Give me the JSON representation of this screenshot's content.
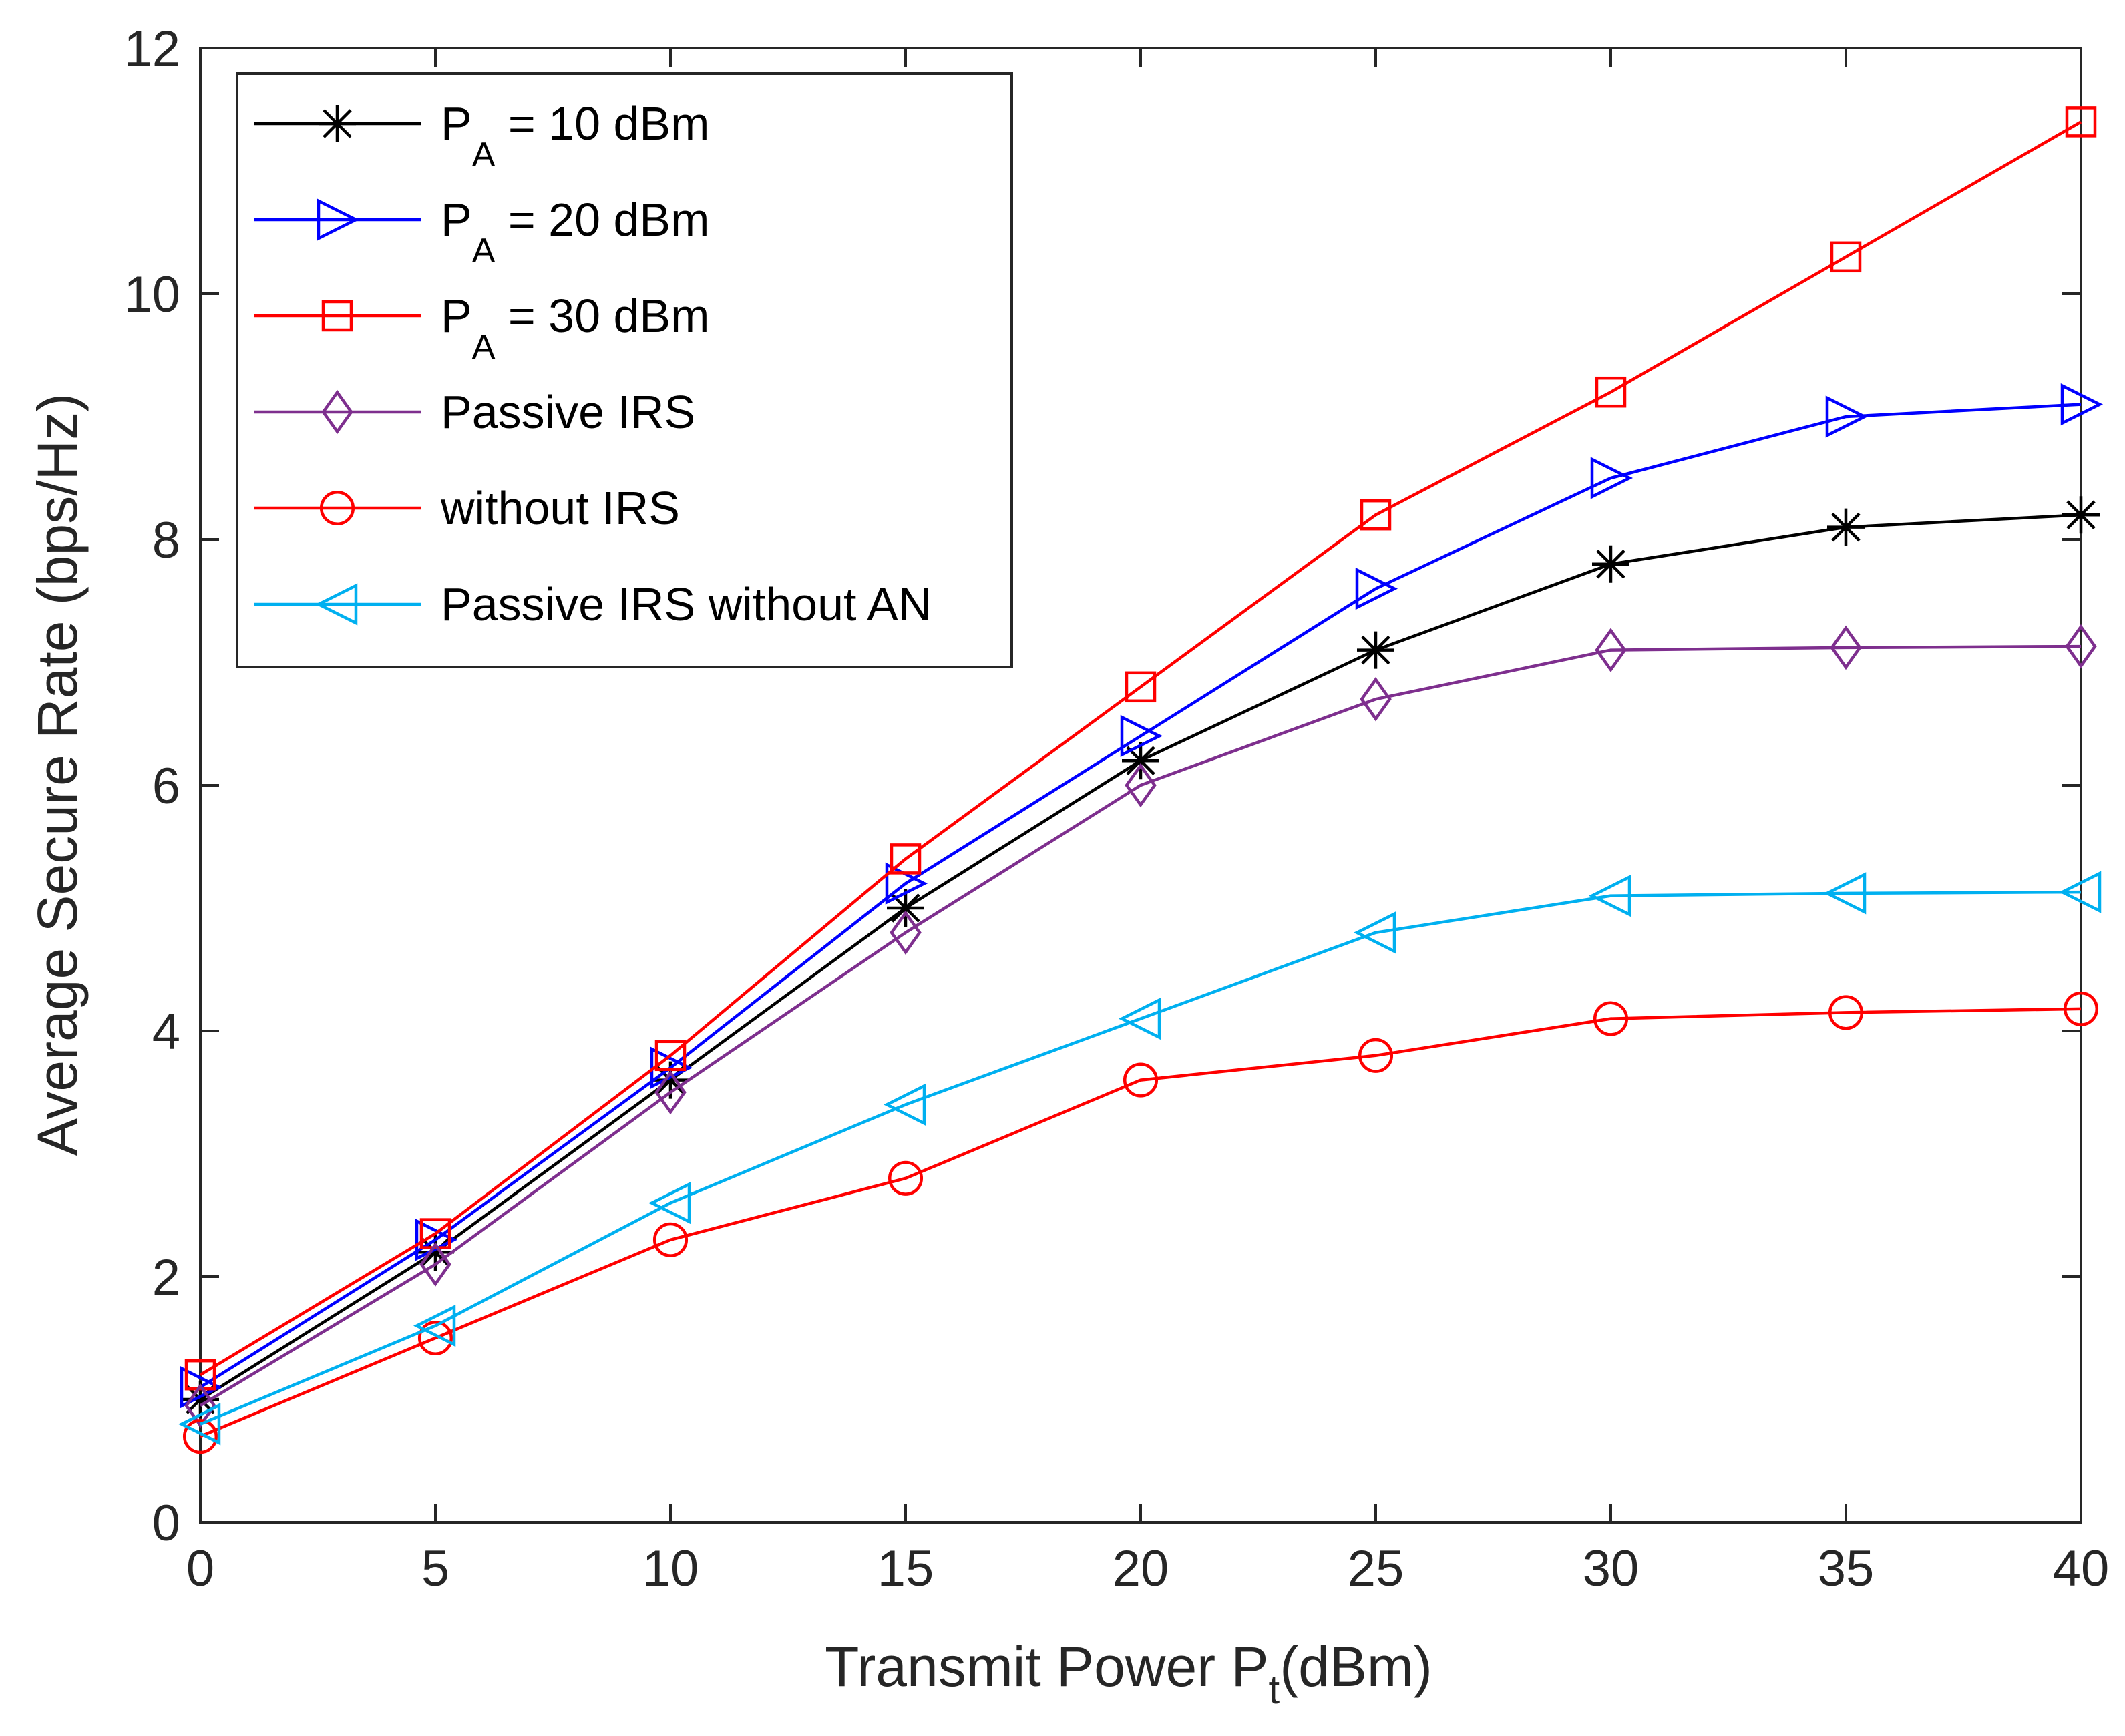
{
  "chart_data": {
    "type": "line",
    "xlabel": "Transmit Power P",
    "xlabel_sub": "t",
    "xlabel_suffix": "(dBm)",
    "ylabel": "Average Secure Rate (bps/Hz)",
    "xlim": [
      0,
      40
    ],
    "ylim": [
      0,
      12
    ],
    "xticks": [
      0,
      5,
      10,
      15,
      20,
      25,
      30,
      35,
      40
    ],
    "yticks": [
      0,
      2,
      4,
      6,
      8,
      10,
      12
    ],
    "grid": false,
    "legend_position": "top-left",
    "x": [
      0,
      5,
      10,
      15,
      20,
      25,
      30,
      35,
      40
    ],
    "series": [
      {
        "name": "P_A = 10 dBm",
        "label_main": "P",
        "label_sub": "A",
        "label_rest": " = 10 dBm",
        "color": "#000000",
        "marker": "asterisk",
        "values": [
          1.0,
          2.2,
          3.6,
          5.0,
          6.2,
          7.1,
          7.8,
          8.1,
          8.2
        ]
      },
      {
        "name": "P_A = 20 dBm",
        "label_main": "P",
        "label_sub": "A",
        "label_rest": " = 20 dBm",
        "color": "#0000ff",
        "marker": "triangle-right",
        "values": [
          1.1,
          2.3,
          3.7,
          5.2,
          6.4,
          7.6,
          8.5,
          9.0,
          9.1
        ]
      },
      {
        "name": "P_A = 30 dBm",
        "label_main": "P",
        "label_sub": "A",
        "label_rest": " = 30 dBm",
        "color": "#ff0000",
        "marker": "square",
        "values": [
          1.2,
          2.35,
          3.8,
          5.4,
          6.8,
          8.2,
          9.2,
          10.3,
          11.4
        ]
      },
      {
        "name": "Passive IRS",
        "label_main": "Passive IRS",
        "label_sub": "",
        "label_rest": "",
        "color": "#7e2f8e",
        "marker": "diamond",
        "values": [
          0.95,
          2.1,
          3.5,
          4.8,
          6.0,
          6.7,
          7.1,
          7.12,
          7.13
        ]
      },
      {
        "name": "without IRS",
        "label_main": "without IRS",
        "label_sub": "",
        "label_rest": "",
        "color": "#ff0000",
        "marker": "circle",
        "values": [
          0.7,
          1.5,
          2.3,
          2.8,
          3.6,
          3.8,
          4.1,
          4.15,
          4.18
        ]
      },
      {
        "name": "Passive IRS without AN",
        "label_main": "Passive IRS without AN",
        "label_sub": "",
        "label_rest": "",
        "color": "#00b0f0",
        "marker": "triangle-left",
        "values": [
          0.8,
          1.6,
          2.6,
          3.4,
          4.1,
          4.8,
          5.1,
          5.12,
          5.13
        ]
      }
    ]
  }
}
